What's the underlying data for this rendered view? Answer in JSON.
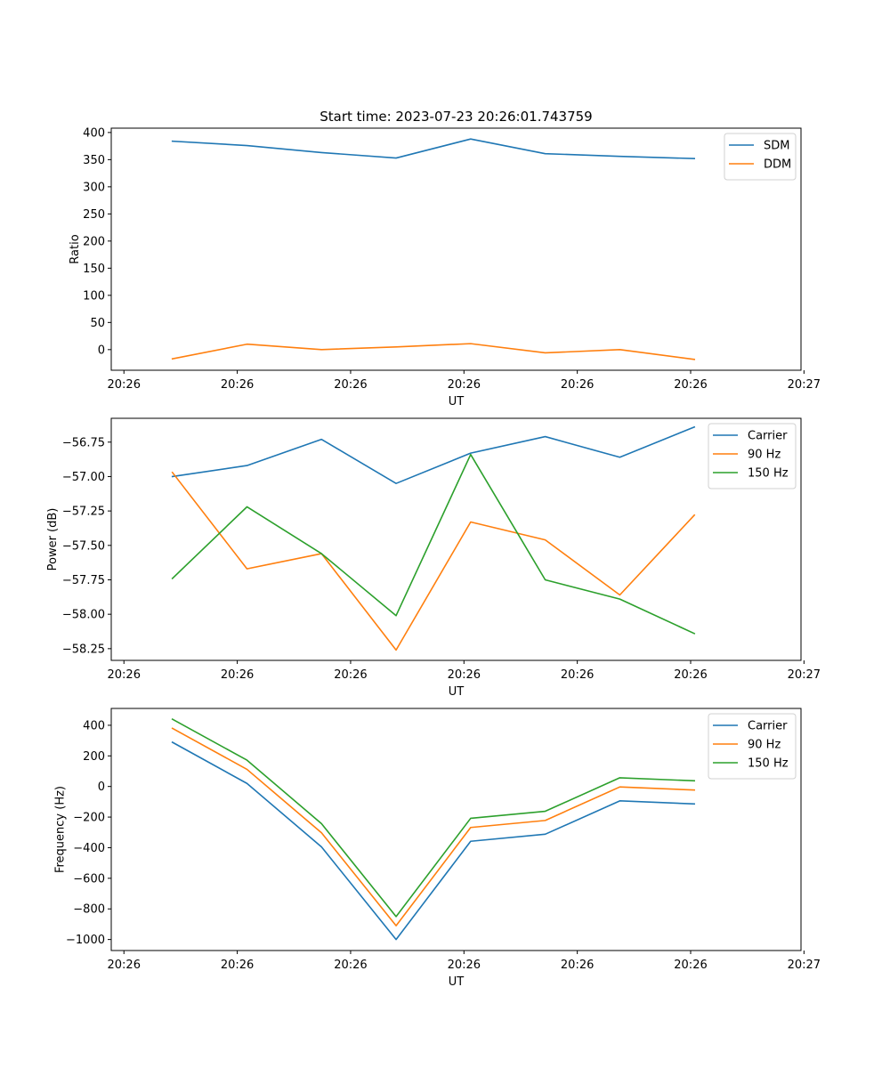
{
  "figure_title": "Start time: 2023-07-23 20:26:01.743759",
  "colors": {
    "blue": "#1f77b4",
    "orange": "#ff7f0e",
    "green": "#2ca02c"
  },
  "chart_data": [
    {
      "type": "line",
      "title": "Start time: 2023-07-23 20:26:01.743759",
      "xlabel": "UT",
      "ylabel": "Ratio",
      "x": [
        1,
        2,
        3,
        4,
        5,
        6,
        7,
        8
      ],
      "xlim": [
        0.18,
        9.43
      ],
      "x_ticks": [
        0.35,
        1.87,
        3.39,
        4.91,
        6.43,
        7.95,
        9.47
      ],
      "x_tick_labels": [
        "20:26",
        "20:26",
        "20:26",
        "20:26",
        "20:26",
        "20:26",
        "20:27"
      ],
      "ylim": [
        -38,
        408
      ],
      "y_ticks": [
        0,
        50,
        100,
        150,
        200,
        250,
        300,
        350,
        400
      ],
      "y_tick_labels": [
        "0",
        "50",
        "100",
        "150",
        "200",
        "250",
        "300",
        "350",
        "400"
      ],
      "legend_position": "top-right",
      "series": [
        {
          "name": "SDM",
          "color": "#1f77b4",
          "values": [
            384,
            376,
            363,
            353,
            388,
            361,
            356,
            352
          ]
        },
        {
          "name": "DDM",
          "color": "#ff7f0e",
          "values": [
            -17,
            10,
            0,
            5,
            11,
            -6,
            0,
            -18
          ]
        }
      ]
    },
    {
      "type": "line",
      "title": "",
      "xlabel": "UT",
      "ylabel": "Power (dB)",
      "x": [
        1,
        2,
        3,
        4,
        5,
        6,
        7,
        8
      ],
      "xlim": [
        0.18,
        9.43
      ],
      "x_ticks": [
        0.35,
        1.87,
        3.39,
        4.91,
        6.43,
        7.95,
        9.47
      ],
      "x_tick_labels": [
        "20:26",
        "20:26",
        "20:26",
        "20:26",
        "20:26",
        "20:26",
        "20:27"
      ],
      "ylim": [
        -58.335,
        -56.577
      ],
      "y_ticks": [
        -58.25,
        -58.0,
        -57.75,
        -57.5,
        -57.25,
        -57.0,
        -56.75
      ],
      "y_tick_labels": [
        "−58.25",
        "−58.00",
        "−57.75",
        "−57.50",
        "−57.25",
        "−57.00",
        "−56.75"
      ],
      "legend_position": "top-right",
      "series": [
        {
          "name": "Carrier",
          "color": "#1f77b4",
          "values": [
            -57.0,
            -56.92,
            -56.73,
            -57.05,
            -56.83,
            -56.71,
            -56.86,
            -56.64
          ]
        },
        {
          "name": "90 Hz",
          "color": "#ff7f0e",
          "values": [
            -56.97,
            -57.67,
            -57.56,
            -58.26,
            -57.33,
            -57.46,
            -57.86,
            -57.28
          ]
        },
        {
          "name": "150 Hz",
          "color": "#2ca02c",
          "values": [
            -57.74,
            -57.22,
            -57.56,
            -58.01,
            -56.84,
            -57.75,
            -57.89,
            -58.14
          ]
        }
      ]
    },
    {
      "type": "line",
      "title": "",
      "xlabel": "UT",
      "ylabel": "Frequency (Hz)",
      "x": [
        1,
        2,
        3,
        4,
        5,
        6,
        7,
        8
      ],
      "xlim": [
        0.18,
        9.43
      ],
      "x_ticks": [
        0.35,
        1.87,
        3.39,
        4.91,
        6.43,
        7.95,
        9.47
      ],
      "x_tick_labels": [
        "20:26",
        "20:26",
        "20:26",
        "20:26",
        "20:26",
        "20:26",
        "20:27"
      ],
      "ylim": [
        -1072,
        510
      ],
      "y_ticks": [
        -1000,
        -800,
        -600,
        -400,
        -200,
        0,
        200,
        400
      ],
      "y_tick_labels": [
        "−1000",
        "−800",
        "−600",
        "−400",
        "−200",
        "0",
        "200",
        "400"
      ],
      "legend_position": "top-right",
      "series": [
        {
          "name": "Carrier",
          "color": "#1f77b4",
          "values": [
            289,
            20,
            -395,
            -1000,
            -358,
            -312,
            -94,
            -114
          ]
        },
        {
          "name": "90 Hz",
          "color": "#ff7f0e",
          "values": [
            380,
            112,
            -303,
            -910,
            -268,
            -222,
            -3,
            -23
          ]
        },
        {
          "name": "150 Hz",
          "color": "#2ca02c",
          "values": [
            440,
            172,
            -243,
            -850,
            -208,
            -162,
            57,
            37
          ]
        }
      ]
    }
  ]
}
